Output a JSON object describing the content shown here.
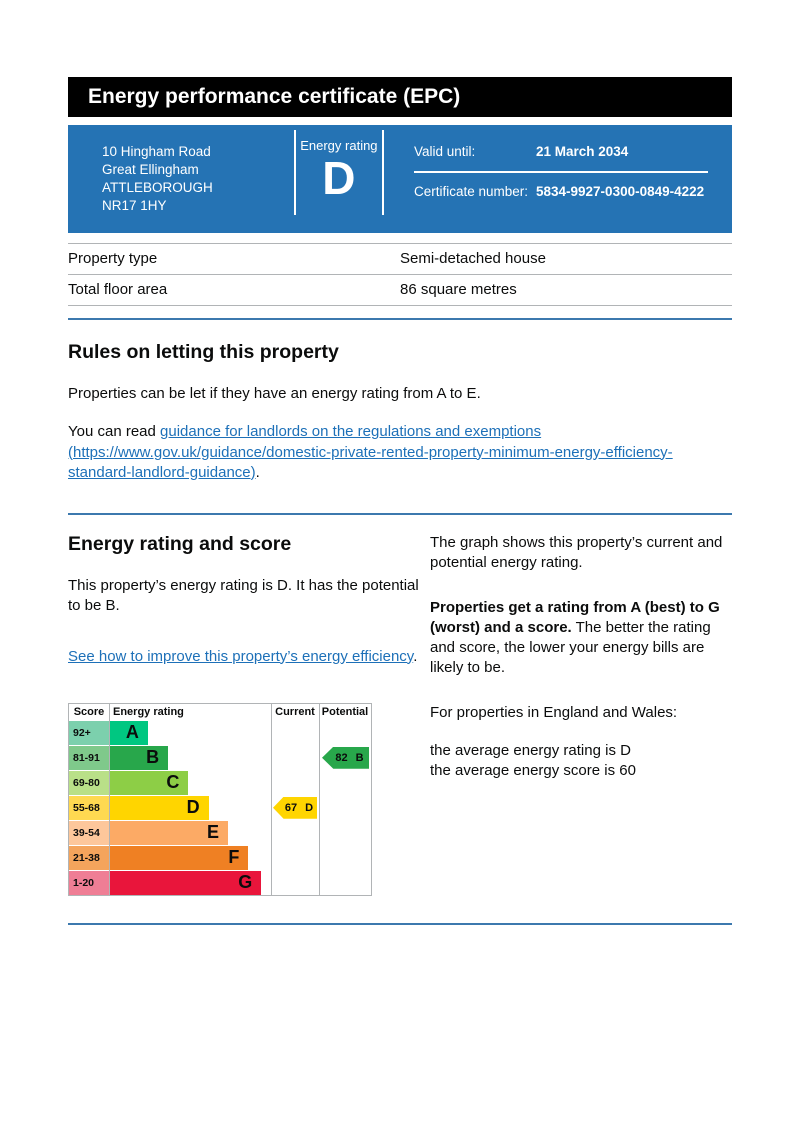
{
  "colors": {
    "summary_blue": "#2573b4",
    "divider_blue": "#3c79ae",
    "link_blue": "#1d70b8",
    "topbar_black": "#000000"
  },
  "header": {
    "title": "Energy performance certificate (EPC)"
  },
  "summary": {
    "address_lines": [
      "10 Hingham Road",
      "Great Ellingham",
      "ATTLEBOROUGH",
      "NR17 1HY"
    ],
    "energy_rating_label": "Energy rating",
    "energy_rating_value": "D",
    "valid_until_label": "Valid until:",
    "valid_until_value": "21 March 2034",
    "certificate_number_label": "Certificate number:",
    "certificate_number_value": "5834-9927-0300-0849-4222"
  },
  "property_table": {
    "rows": [
      {
        "label": "Property type",
        "value": "Semi-detached house"
      },
      {
        "label": "Total floor area",
        "value": "86 square metres"
      }
    ]
  },
  "rules_section": {
    "heading": "Rules on letting this property",
    "para1": "Properties can be let if they have an energy rating from A to E.",
    "para2_prefix": "You can read ",
    "para2_link": "guidance for landlords on the regulations and exemptions (https://www.gov.uk/guidance/domestic-private-rented-property-minimum-energy-efficiency-standard-landlord-guidance)",
    "para2_suffix": "."
  },
  "rating_section": {
    "heading": "Energy rating and score",
    "para1": "This property’s energy rating is D. It has the potential to be B.",
    "improve_link": "See how to improve this property’s energy efficiency",
    "improve_link_suffix": ".",
    "right_para1": "The graph shows this property’s current and potential energy rating.",
    "right_para2_bold": "Properties get a rating from A (best) to G (worst) and a score.",
    "right_para2_rest": " The better the rating and score, the lower your energy bills are likely to be.",
    "right_para3": "For properties in England and Wales:",
    "right_line1": "the average energy rating is D",
    "right_line2": "the average energy score is 60"
  },
  "chart_data": {
    "type": "bar",
    "title": "EPC energy rating bands with current and potential scores",
    "headers": {
      "score": "Score",
      "rating": "Energy rating",
      "current": "Current",
      "potential": "Potential"
    },
    "bands": [
      {
        "range": "92+",
        "letter": "A",
        "color": "#00c781",
        "tint": "#7cd0ad",
        "width_pct": 24
      },
      {
        "range": "81-91",
        "letter": "B",
        "color": "#28a74b",
        "tint": "#7fc98b",
        "width_pct": 36.5
      },
      {
        "range": "69-80",
        "letter": "C",
        "color": "#8dce46",
        "tint": "#b9e088",
        "width_pct": 49
      },
      {
        "range": "55-68",
        "letter": "D",
        "color": "#ffd500",
        "tint": "#ffd951",
        "width_pct": 61.5
      },
      {
        "range": "39-54",
        "letter": "E",
        "color": "#fcaa65",
        "tint": "#fdc79b",
        "width_pct": 73.5
      },
      {
        "range": "21-38",
        "letter": "F",
        "color": "#ef8023",
        "tint": "#f4a45c",
        "width_pct": 86
      },
      {
        "range": "1-20",
        "letter": "G",
        "color": "#e9153b",
        "tint": "#ef7e95",
        "width_pct": 94
      }
    ],
    "current": {
      "score": 67,
      "letter": "D",
      "color": "#ffd500"
    },
    "potential": {
      "score": 82,
      "letter": "B",
      "color": "#28a74b"
    }
  }
}
